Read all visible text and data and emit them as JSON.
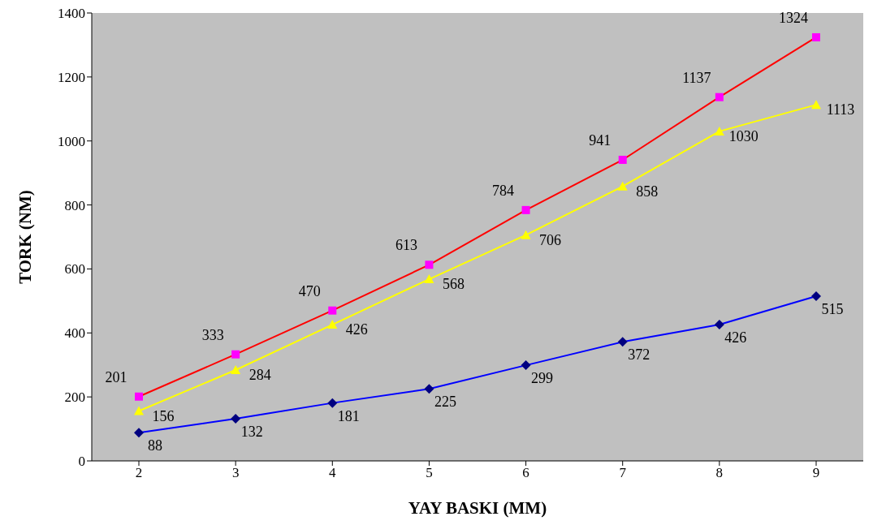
{
  "chart_data": {
    "type": "line",
    "xlabel": "YAY BASKI (MM)",
    "ylabel": "TORK (NM)",
    "categories": [
      "2",
      "3",
      "4",
      "5",
      "6",
      "7",
      "8",
      "9"
    ],
    "series": [
      {
        "color": "#ff0000",
        "colors": [
          "#ff00ff",
          "#ff00ff",
          "#ff00ff",
          "#ff00ff",
          "#ff00ff",
          "#ff00ff",
          "#ff00ff",
          "#ff00ff"
        ],
        "marker": "square",
        "values": [
          201,
          333,
          470,
          613,
          784,
          941,
          1137,
          1324
        ]
      },
      {
        "color": "#ffff00",
        "marker": "triangle",
        "values": [
          156,
          284,
          426,
          568,
          706,
          858,
          1030,
          1113
        ]
      },
      {
        "color": "#0000ff",
        "colors": [
          "#000080",
          "#000080",
          "#000080",
          "#000080",
          "#000080",
          "#000080",
          "#000080",
          "#000080"
        ],
        "marker": "diamond",
        "values": [
          88,
          132,
          181,
          225,
          299,
          372,
          426,
          515
        ]
      }
    ],
    "ylim": [
      0,
      1400
    ],
    "yticks": [
      0,
      200,
      400,
      600,
      800,
      1000,
      1200,
      1400
    ],
    "grid": false,
    "legend": false,
    "data_labels": true,
    "line_style": "solid"
  }
}
